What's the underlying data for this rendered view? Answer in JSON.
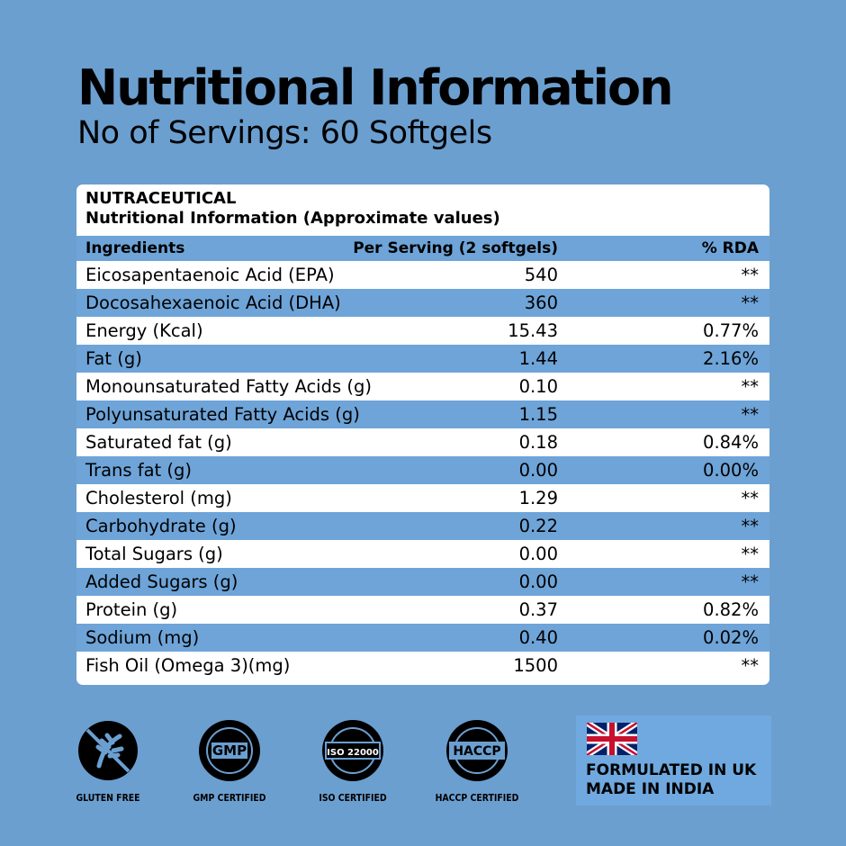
{
  "header": {
    "title": "Nutritional Information",
    "subtitle": "No of Servings:  60 Softgels"
  },
  "table": {
    "brand": "NUTRACEUTICAL",
    "caption": "Nutritional Information (Approximate values)",
    "columns": [
      "Ingredients",
      "Per Serving (2 softgels)",
      "% RDA"
    ],
    "rows": [
      [
        "Eicosapentaenoic Acid (EPA)",
        "540",
        "**"
      ],
      [
        "Docosahexaenoic Acid (DHA)",
        "360",
        "**"
      ],
      [
        "Energy (Kcal)",
        "15.43",
        "0.77%"
      ],
      [
        "Fat (g)",
        "1.44",
        "2.16%"
      ],
      [
        "Monounsaturated Fatty Acids (g)",
        "0.10",
        "**"
      ],
      [
        "Polyunsaturated Fatty Acids (g)",
        "1.15",
        "**"
      ],
      [
        "Saturated fat (g)",
        "0.18",
        "0.84%"
      ],
      [
        "Trans fat (g)",
        "0.00",
        "0.00%"
      ],
      [
        "Cholesterol (mg)",
        "1.29",
        "**"
      ],
      [
        "Carbohydrate (g)",
        "0.22",
        "**"
      ],
      [
        "Total Sugars (g)",
        "0.00",
        "**"
      ],
      [
        "Added Sugars (g)",
        "0.00",
        "**"
      ],
      [
        "Protein (g)",
        "0.37",
        "0.82%"
      ],
      [
        "Sodium (mg)",
        "0.40",
        "0.02%"
      ],
      [
        "Fish Oil (Omega 3)(mg)",
        "1500",
        "**"
      ]
    ]
  },
  "badges": [
    {
      "label": "GLUTEN FREE"
    },
    {
      "label": "GMP CERTIFIED",
      "icon": "GMP"
    },
    {
      "label": "ISO CERTIFIED",
      "icon": "ISO 22000"
    },
    {
      "label": "HACCP CERTIFIED",
      "icon": "HACCP"
    }
  ],
  "origin": [
    "FORMULATED IN UK",
    "MADE IN INDIA"
  ]
}
